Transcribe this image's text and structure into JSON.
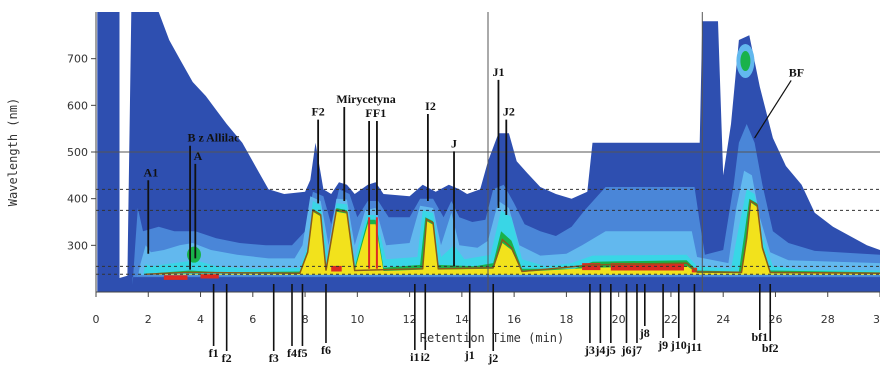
{
  "chart_data": {
    "type": "heatmap",
    "title": "",
    "xlabel": "Retention Time (min)",
    "ylabel": "Wavelength (nm)",
    "xlim": [
      0,
      30
    ],
    "ylim": [
      200,
      800
    ],
    "x_ticks": [
      0,
      2,
      4,
      6,
      8,
      10,
      12,
      14,
      16,
      18,
      20,
      22,
      24,
      26,
      28,
      30
    ],
    "y_ticks": [
      300,
      400,
      500,
      600,
      700
    ],
    "grid": false,
    "reference_lines": {
      "solid_wavelengths": [
        500
      ],
      "dashed_wavelengths": [
        420,
        375,
        255,
        238
      ],
      "solid_times": [
        15.0,
        23.2
      ]
    },
    "colors": {
      "dark_blue": "#2e4fb0",
      "mid_blue": "#4a86d8",
      "light_blue": "#62b8ee",
      "cyan": "#39d6e6",
      "green": "#19b24a",
      "yellow": "#f2e21c",
      "red": "#dd2a22"
    },
    "peaks": [
      {
        "label": "A1",
        "time": 2.0,
        "wavelength": 455
      },
      {
        "label": "B z Allilac",
        "time": 3.6,
        "wavelength": 525
      },
      {
        "label": "A",
        "time": 3.8,
        "wavelength": 485
      },
      {
        "label": "F2",
        "time": 8.5,
        "wavelength": 580
      },
      {
        "label": "Mirycetyna",
        "time": 9.5,
        "wavelength": 600
      },
      {
        "label": "F",
        "time": 10.45,
        "wavelength": 575
      },
      {
        "label": "F1",
        "time": 10.75,
        "wavelength": 575
      },
      {
        "label": "I2",
        "time": 12.7,
        "wavelength": 590
      },
      {
        "label": "J",
        "time": 13.7,
        "wavelength": 510
      },
      {
        "label": "J1",
        "time": 15.4,
        "wavelength": 665
      },
      {
        "label": "J2",
        "time": 15.7,
        "wavelength": 580
      },
      {
        "label": "BF",
        "time": 26.7,
        "wavelength": 665
      }
    ],
    "sub_peaks": [
      {
        "label": "f1",
        "time": 4.5
      },
      {
        "label": "f2",
        "time": 5.0
      },
      {
        "label": "f3",
        "time": 6.8
      },
      {
        "label": "f4",
        "time": 7.5
      },
      {
        "label": "f5",
        "time": 7.9
      },
      {
        "label": "f6",
        "time": 8.8
      },
      {
        "label": "i1",
        "time": 12.2
      },
      {
        "label": "i2",
        "time": 12.6
      },
      {
        "label": "j1",
        "time": 14.3
      },
      {
        "label": "j2",
        "time": 15.2
      },
      {
        "label": "j3",
        "time": 18.9
      },
      {
        "label": "j4",
        "time": 19.3
      },
      {
        "label": "j5",
        "time": 19.7
      },
      {
        "label": "j6",
        "time": 20.3
      },
      {
        "label": "j7",
        "time": 20.7
      },
      {
        "label": "j8",
        "time": 21.0
      },
      {
        "label": "j9",
        "time": 21.7
      },
      {
        "label": "j10",
        "time": 22.3
      },
      {
        "label": "j11",
        "time": 22.9
      },
      {
        "label": "bf1",
        "time": 25.4
      },
      {
        "label": "bf2",
        "time": 25.8
      }
    ]
  }
}
